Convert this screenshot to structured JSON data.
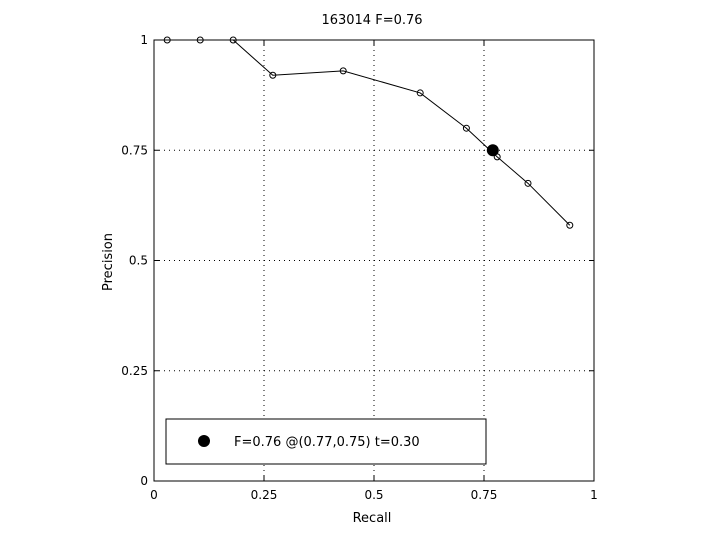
{
  "chart_data": {
    "type": "line",
    "title": "163014 F=0.76",
    "xlabel": "Recall",
    "ylabel": "Precision",
    "xlim": [
      0,
      1
    ],
    "ylim": [
      0,
      1
    ],
    "xticks": [
      "0",
      "0.25",
      "0.5",
      "0.75",
      "1"
    ],
    "yticks": [
      "0",
      "0.25",
      "0.5",
      "0.75",
      "1"
    ],
    "grid": true,
    "legend_position": "bottom-left",
    "series": [
      {
        "marker": "open-circle",
        "x": [
          0.03,
          0.105,
          0.18,
          0.27,
          0.43,
          0.605,
          0.71,
          0.78,
          0.85,
          0.945
        ],
        "y": [
          1.0,
          1.0,
          1.0,
          0.92,
          0.93,
          0.88,
          0.8,
          0.735,
          0.675,
          0.58
        ]
      }
    ],
    "best_point": {
      "x": 0.77,
      "y": 0.75,
      "label": "F=0.76 @(0.77,0.75) t=0.30"
    },
    "colors": {
      "line": "#000000",
      "marker": "#000000",
      "background": "#ffffff"
    }
  }
}
